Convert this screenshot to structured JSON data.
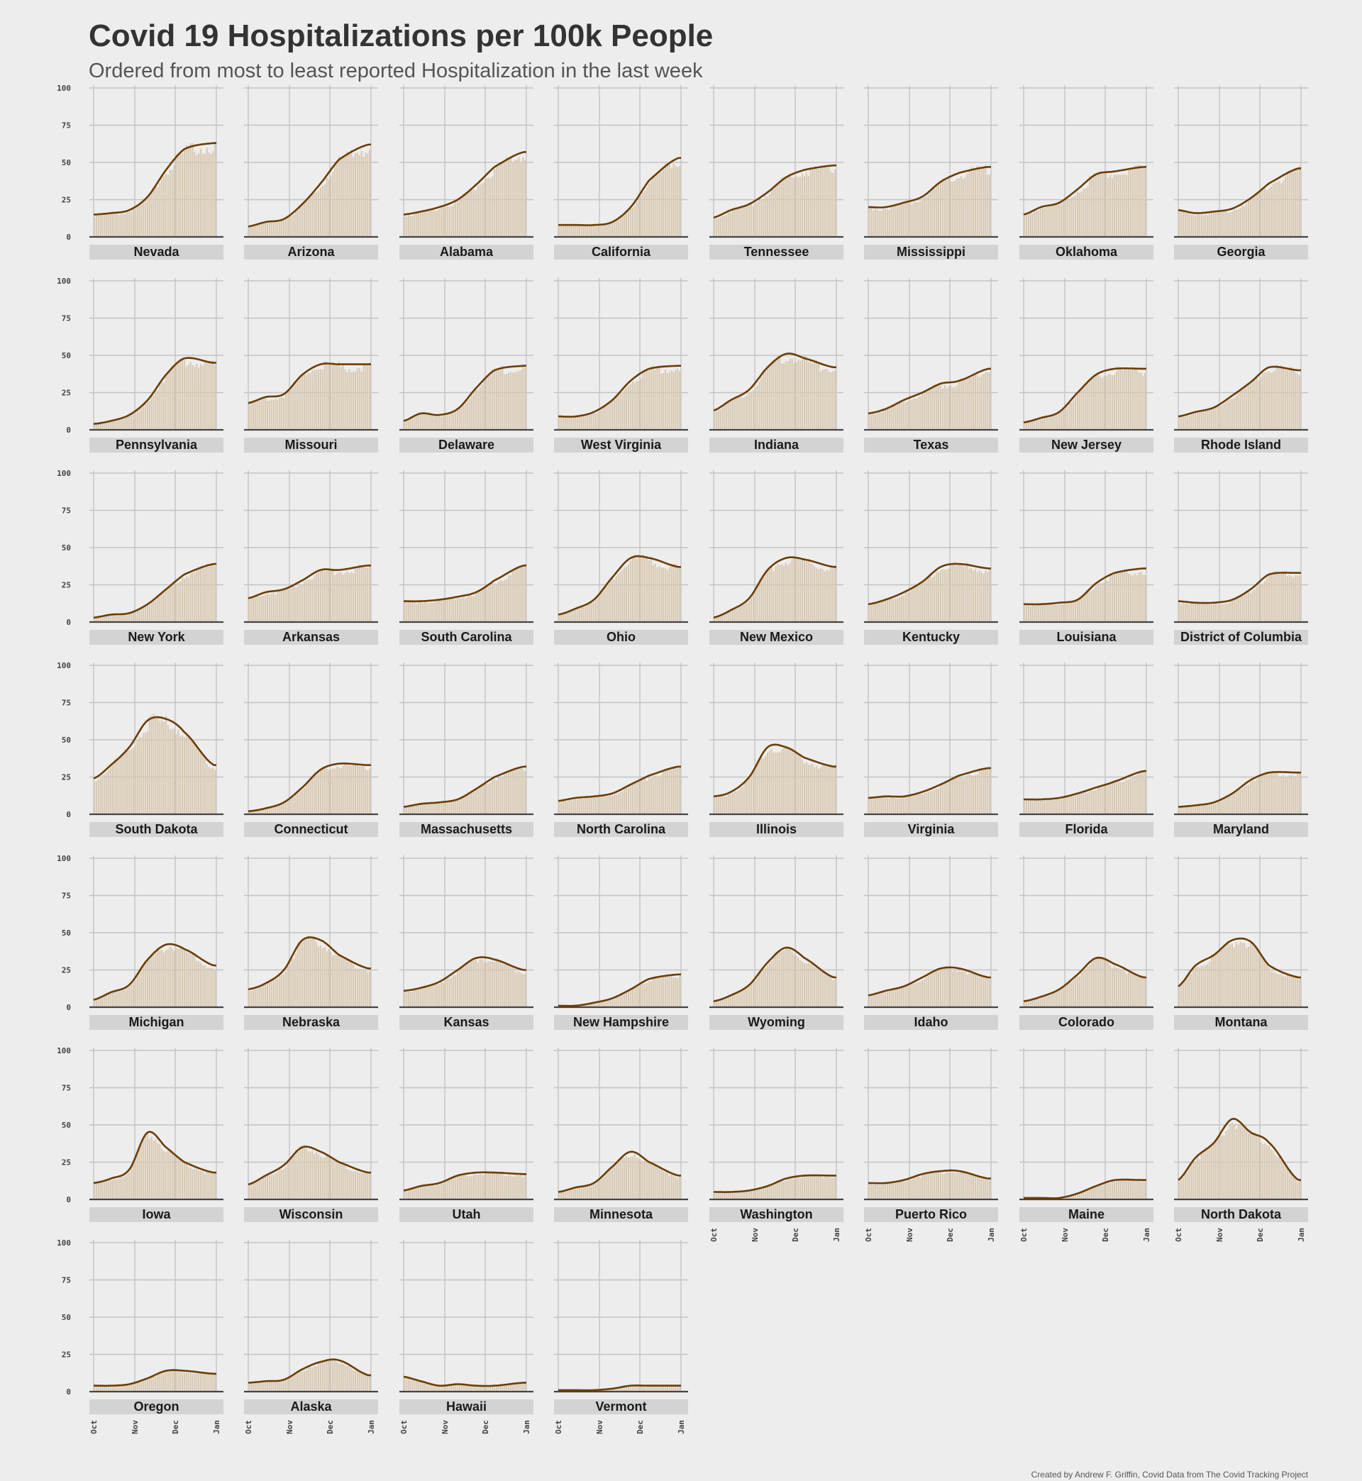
{
  "title": "Covid 19 Hospitalizations per 100k People",
  "subtitle": "Ordered from most to least reported Hospitalization in the last week",
  "caption": "Created by Andrew F. Griffin, Covid Data from The Covid Tracking Project",
  "colors": {
    "background": "#ededed",
    "gridline": "#c4c4c4",
    "baseline": "#444444",
    "strip": "#d3d3d3",
    "bar": "#d9c9b2",
    "line": "#6b3d05"
  },
  "chart_data": {
    "type": "line",
    "facet_by": "state",
    "x_ticks": [
      "Oct",
      "Nov",
      "Dec",
      "Jan"
    ],
    "x_domain": [
      "Oct",
      "Jan"
    ],
    "y_ticks": [
      0,
      25,
      50,
      75,
      100
    ],
    "ylim": [
      0,
      100
    ],
    "grid": true,
    "bars": "daily reported values (light bars)",
    "line": "7-day rolling average",
    "x_sample_points": [
      "Oct 1",
      "Oct 15",
      "Nov 1",
      "Nov 15",
      "Dec 1",
      "Dec 15",
      "Jan 1"
    ],
    "series": [
      {
        "name": "Nevada",
        "values": [
          15,
          16,
          18,
          27,
          45,
          59,
          63
        ]
      },
      {
        "name": "Arizona",
        "values": [
          7,
          10,
          12,
          22,
          36,
          52,
          62
        ]
      },
      {
        "name": "Alabama",
        "values": [
          15,
          17,
          20,
          25,
          35,
          47,
          57
        ]
      },
      {
        "name": "California",
        "values": [
          8,
          8,
          8,
          10,
          20,
          38,
          53
        ]
      },
      {
        "name": "Tennessee",
        "values": [
          13,
          18,
          22,
          30,
          40,
          45,
          48
        ]
      },
      {
        "name": "Mississippi",
        "values": [
          20,
          20,
          23,
          27,
          37,
          43,
          47
        ]
      },
      {
        "name": "Oklahoma",
        "values": [
          15,
          20,
          23,
          32,
          42,
          44,
          47
        ]
      },
      {
        "name": "Georgia",
        "values": [
          18,
          16,
          17,
          19,
          26,
          36,
          46
        ]
      },
      {
        "name": "Pennsylvania",
        "values": [
          4,
          6,
          10,
          20,
          37,
          48,
          45
        ]
      },
      {
        "name": "Missouri",
        "values": [
          18,
          22,
          24,
          37,
          44,
          44,
          44
        ]
      },
      {
        "name": "Delaware",
        "values": [
          6,
          11,
          10,
          14,
          28,
          40,
          43
        ]
      },
      {
        "name": "West Virginia",
        "values": [
          9,
          9,
          12,
          20,
          33,
          41,
          43
        ]
      },
      {
        "name": "Indiana",
        "values": [
          13,
          20,
          27,
          42,
          51,
          48,
          42
        ]
      },
      {
        "name": "Texas",
        "values": [
          11,
          14,
          20,
          25,
          31,
          33,
          41
        ]
      },
      {
        "name": "New Jersey",
        "values": [
          5,
          8,
          12,
          25,
          37,
          41,
          41
        ]
      },
      {
        "name": "Rhode Island",
        "values": [
          9,
          12,
          15,
          23,
          32,
          42,
          40
        ]
      },
      {
        "name": "New York",
        "values": [
          3,
          5,
          6,
          12,
          22,
          32,
          39
        ]
      },
      {
        "name": "Arkansas",
        "values": [
          16,
          20,
          22,
          28,
          35,
          35,
          38
        ]
      },
      {
        "name": "South Carolina",
        "values": [
          14,
          14,
          15,
          17,
          20,
          28,
          38
        ]
      },
      {
        "name": "Ohio",
        "values": [
          5,
          9,
          15,
          30,
          43,
          43,
          37
        ]
      },
      {
        "name": "New Mexico",
        "values": [
          3,
          8,
          16,
          35,
          43,
          42,
          37
        ]
      },
      {
        "name": "Kentucky",
        "values": [
          12,
          15,
          20,
          27,
          37,
          39,
          36
        ]
      },
      {
        "name": "Louisiana",
        "values": [
          12,
          12,
          13,
          15,
          26,
          33,
          36
        ]
      },
      {
        "name": "District of Columbia",
        "values": [
          14,
          13,
          13,
          15,
          22,
          32,
          33
        ]
      },
      {
        "name": "South Dakota",
        "values": [
          24,
          33,
          45,
          63,
          64,
          55,
          33
        ]
      },
      {
        "name": "Connecticut",
        "values": [
          2,
          4,
          8,
          18,
          30,
          34,
          33
        ]
      },
      {
        "name": "Massachusetts",
        "values": [
          5,
          7,
          8,
          10,
          17,
          25,
          32
        ]
      },
      {
        "name": "North Carolina",
        "values": [
          9,
          11,
          12,
          14,
          20,
          26,
          32
        ]
      },
      {
        "name": "Illinois",
        "values": [
          12,
          15,
          25,
          45,
          45,
          38,
          32
        ]
      },
      {
        "name": "Virginia",
        "values": [
          11,
          12,
          12,
          15,
          20,
          26,
          31
        ]
      },
      {
        "name": "Florida",
        "values": [
          10,
          10,
          11,
          14,
          18,
          22,
          29
        ]
      },
      {
        "name": "Maryland",
        "values": [
          5,
          6,
          8,
          14,
          23,
          28,
          28
        ]
      },
      {
        "name": "Michigan",
        "values": [
          5,
          10,
          15,
          32,
          42,
          39,
          28
        ]
      },
      {
        "name": "Nebraska",
        "values": [
          12,
          16,
          25,
          45,
          45,
          35,
          26
        ]
      },
      {
        "name": "Kansas",
        "values": [
          11,
          13,
          17,
          25,
          33,
          32,
          25
        ]
      },
      {
        "name": "New Hampshire",
        "values": [
          1,
          1,
          3,
          6,
          12,
          19,
          22
        ]
      },
      {
        "name": "Wyoming",
        "values": [
          4,
          8,
          15,
          30,
          40,
          33,
          20
        ]
      },
      {
        "name": "Idaho",
        "values": [
          8,
          11,
          14,
          20,
          26,
          26,
          20
        ]
      },
      {
        "name": "Colorado",
        "values": [
          4,
          7,
          12,
          22,
          33,
          29,
          20
        ]
      },
      {
        "name": "Montana",
        "values": [
          14,
          28,
          35,
          45,
          44,
          28,
          20
        ]
      },
      {
        "name": "Iowa",
        "values": [
          11,
          14,
          20,
          45,
          35,
          25,
          18
        ]
      },
      {
        "name": "Wisconsin",
        "values": [
          10,
          16,
          23,
          35,
          32,
          25,
          18
        ]
      },
      {
        "name": "Utah",
        "values": [
          6,
          9,
          11,
          16,
          18,
          18,
          17
        ]
      },
      {
        "name": "Minnesota",
        "values": [
          5,
          8,
          11,
          22,
          32,
          25,
          16
        ]
      },
      {
        "name": "Washington",
        "values": [
          5,
          5,
          6,
          9,
          14,
          16,
          16
        ]
      },
      {
        "name": "Puerto Rico",
        "values": [
          11,
          11,
          13,
          17,
          19,
          19,
          14
        ]
      },
      {
        "name": "Maine",
        "values": [
          1,
          1,
          1,
          4,
          9,
          13,
          13
        ]
      },
      {
        "name": "North Dakota",
        "values": [
          13,
          28,
          38,
          54,
          45,
          38,
          13
        ]
      },
      {
        "name": "Oregon",
        "values": [
          4,
          4,
          5,
          9,
          14,
          14,
          12
        ]
      },
      {
        "name": "Alaska",
        "values": [
          6,
          7,
          8,
          15,
          20,
          21,
          11
        ]
      },
      {
        "name": "Hawaii",
        "values": [
          10,
          7,
          4,
          5,
          4,
          4,
          6
        ]
      },
      {
        "name": "Vermont",
        "values": [
          1,
          1,
          1,
          2,
          4,
          4,
          4
        ]
      }
    ]
  }
}
